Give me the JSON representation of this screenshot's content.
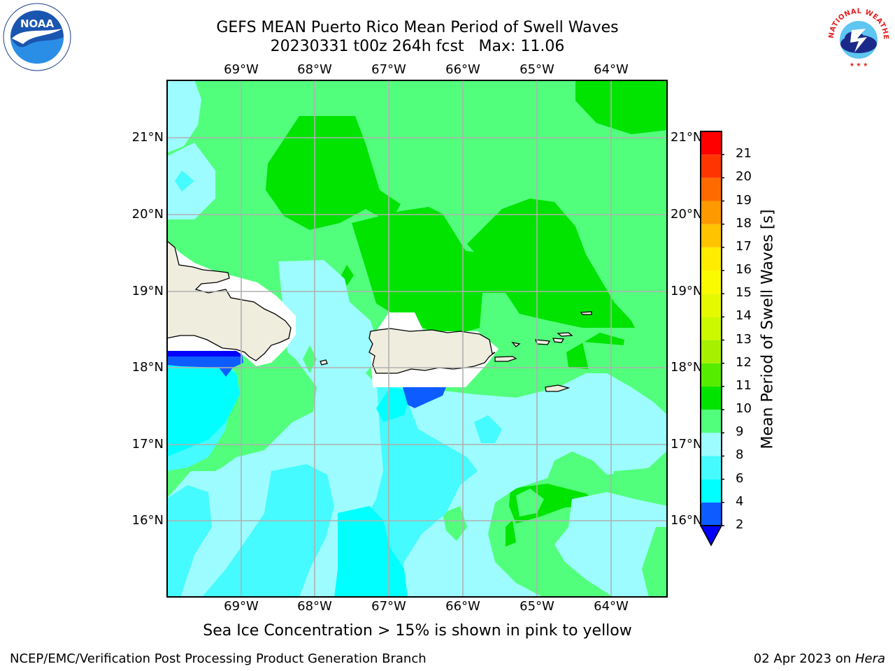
{
  "title": {
    "line1": "GEFS MEAN Puerto Rico Mean Period of Swell Waves",
    "line2": "20230331 t00z 264h fcst   Max: 11.06"
  },
  "map": {
    "lon_labels": [
      "69°W",
      "68°W",
      "67°W",
      "66°W",
      "65°W",
      "64°W"
    ],
    "lat_labels": [
      "21°N",
      "20°N",
      "19°N",
      "18°N",
      "17°N",
      "16°N"
    ],
    "lon_range": [
      -70.0,
      -63.3
    ],
    "lat_range": [
      15.0,
      21.75
    ],
    "land_color": "#efedde",
    "gridlines": true
  },
  "colorbar": {
    "label": "Mean Period of Swell Waves [s]",
    "ticks": [
      "2",
      "4",
      "6",
      "8",
      "9",
      "10",
      "11",
      "12",
      "13",
      "14",
      "15",
      "16",
      "17",
      "18",
      "19",
      "20",
      "21"
    ],
    "colors": [
      "#0d5cff",
      "#00ffff",
      "#45fbff",
      "#9dfcff",
      "#52ff7c",
      "#00e400",
      "#55ec00",
      "#a6f000",
      "#ccf900",
      "#e5f900",
      "#fafa00",
      "#ffec00",
      "#ffc300",
      "#ff9900",
      "#ff6a00",
      "#ff3500",
      "#ff0000"
    ],
    "extend_color": "#0000ff"
  },
  "note": "Sea Ice Concentration > 15% is shown in pink to yellow",
  "footer": {
    "left": "NCEP/EMC/Verification Post Processing Product Generation Branch",
    "right_date": "02 Apr 2023 on ",
    "right_machine": "Hera"
  },
  "logos": {
    "noaa": "NOAA",
    "nws": "NATIONAL WEATHER SERVICE"
  }
}
